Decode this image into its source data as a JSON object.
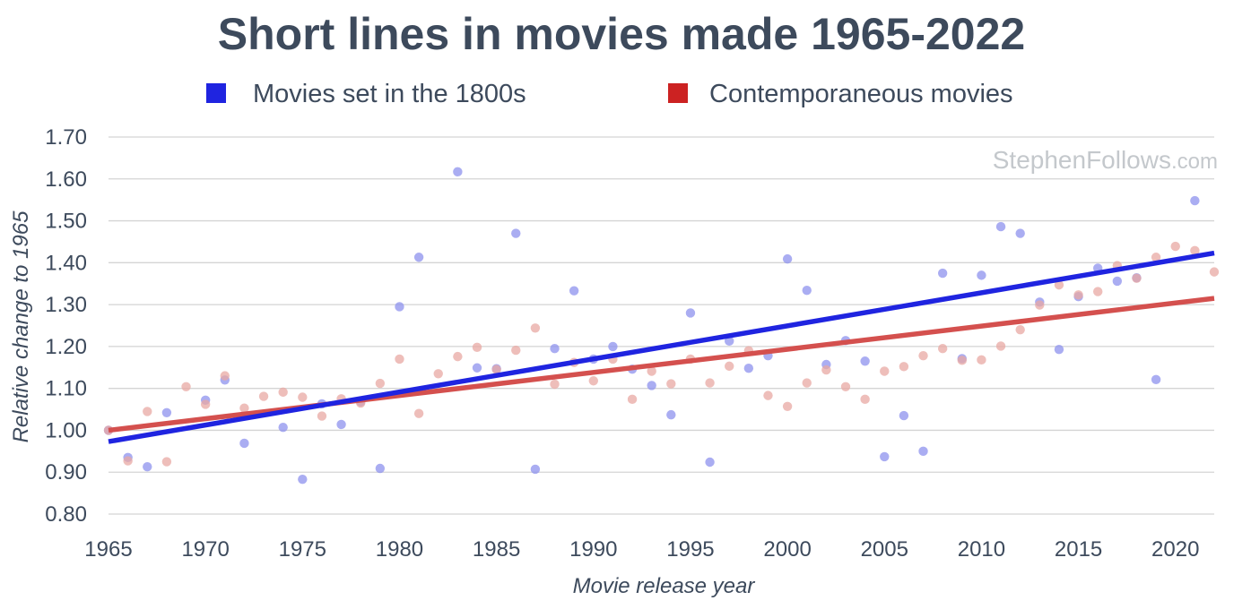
{
  "chart_data": {
    "type": "scatter",
    "title": "Short lines in movies made 1965-2022",
    "xlabel": "Movie release year",
    "ylabel": "Relative change to 1965",
    "xlim": [
      1965,
      2022
    ],
    "ylim": [
      0.8,
      1.7
    ],
    "x_ticks": [
      "1965",
      "1970",
      "1975",
      "1980",
      "1985",
      "1990",
      "1995",
      "2000",
      "2005",
      "2010",
      "2015",
      "2020"
    ],
    "y_ticks": [
      "0.80",
      "0.90",
      "1.00",
      "1.10",
      "1.20",
      "1.30",
      "1.40",
      "1.50",
      "1.60",
      "1.70"
    ],
    "grid": "horizontal",
    "legend_position": "top",
    "watermark": {
      "main": "StephenFollows",
      "suffix": ".com"
    },
    "series": [
      {
        "name": "Movies set in the 1800s",
        "color": "#1f24e0",
        "point_color": "#8d92ee",
        "trend": [
          [
            1965,
            0.973
          ],
          [
            2022,
            1.423
          ]
        ],
        "points": [
          [
            1965,
            1.0
          ],
          [
            1966,
            0.935
          ],
          [
            1967,
            0.913
          ],
          [
            1968,
            1.042
          ],
          [
            1970,
            1.072
          ],
          [
            1971,
            1.12
          ],
          [
            1972,
            0.969
          ],
          [
            1974,
            1.007
          ],
          [
            1975,
            0.883
          ],
          [
            1976,
            1.063
          ],
          [
            1977,
            1.014
          ],
          [
            1978,
            1.068
          ],
          [
            1979,
            0.909
          ],
          [
            1980,
            1.295
          ],
          [
            1981,
            1.413
          ],
          [
            1983,
            1.617
          ],
          [
            1984,
            1.149
          ],
          [
            1985,
            1.147
          ],
          [
            1986,
            1.47
          ],
          [
            1987,
            0.907
          ],
          [
            1988,
            1.195
          ],
          [
            1989,
            1.333
          ],
          [
            1990,
            1.17
          ],
          [
            1991,
            1.2
          ],
          [
            1992,
            1.146
          ],
          [
            1993,
            1.107
          ],
          [
            1994,
            1.037
          ],
          [
            1995,
            1.28
          ],
          [
            1996,
            0.924
          ],
          [
            1997,
            1.213
          ],
          [
            1998,
            1.148
          ],
          [
            1999,
            1.178
          ],
          [
            2000,
            1.409
          ],
          [
            2001,
            1.334
          ],
          [
            2002,
            1.157
          ],
          [
            2003,
            1.214
          ],
          [
            2004,
            1.165
          ],
          [
            2005,
            0.937
          ],
          [
            2006,
            1.035
          ],
          [
            2007,
            0.95
          ],
          [
            2008,
            1.375
          ],
          [
            2009,
            1.171
          ],
          [
            2010,
            1.37
          ],
          [
            2011,
            1.486
          ],
          [
            2012,
            1.47
          ],
          [
            2013,
            1.306
          ],
          [
            2014,
            1.193
          ],
          [
            2015,
            1.319
          ],
          [
            2016,
            1.387
          ],
          [
            2017,
            1.356
          ],
          [
            2018,
            1.364
          ],
          [
            2019,
            1.121
          ],
          [
            2021,
            1.548
          ]
        ]
      },
      {
        "name": "Contemporaneous movies",
        "color": "#cc2222",
        "trend_color": "#d4504e",
        "point_color": "#e8a8a3",
        "trend": [
          [
            1965,
            1.0
          ],
          [
            2022,
            1.315
          ]
        ],
        "points": [
          [
            1965,
            1.0
          ],
          [
            1966,
            0.927
          ],
          [
            1967,
            1.045
          ],
          [
            1968,
            0.925
          ],
          [
            1969,
            1.104
          ],
          [
            1970,
            1.062
          ],
          [
            1971,
            1.13
          ],
          [
            1972,
            1.053
          ],
          [
            1973,
            1.081
          ],
          [
            1974,
            1.091
          ],
          [
            1975,
            1.079
          ],
          [
            1976,
            1.034
          ],
          [
            1977,
            1.075
          ],
          [
            1978,
            1.065
          ],
          [
            1979,
            1.112
          ],
          [
            1980,
            1.17
          ],
          [
            1981,
            1.04
          ],
          [
            1982,
            1.135
          ],
          [
            1983,
            1.176
          ],
          [
            1984,
            1.198
          ],
          [
            1985,
            1.145
          ],
          [
            1986,
            1.191
          ],
          [
            1987,
            1.244
          ],
          [
            1988,
            1.11
          ],
          [
            1989,
            1.162
          ],
          [
            1990,
            1.118
          ],
          [
            1991,
            1.17
          ],
          [
            1992,
            1.074
          ],
          [
            1993,
            1.141
          ],
          [
            1994,
            1.111
          ],
          [
            1995,
            1.17
          ],
          [
            1996,
            1.113
          ],
          [
            1997,
            1.153
          ],
          [
            1998,
            1.19
          ],
          [
            1999,
            1.083
          ],
          [
            2000,
            1.057
          ],
          [
            2001,
            1.113
          ],
          [
            2002,
            1.144
          ],
          [
            2003,
            1.104
          ],
          [
            2004,
            1.074
          ],
          [
            2005,
            1.141
          ],
          [
            2006,
            1.152
          ],
          [
            2007,
            1.178
          ],
          [
            2008,
            1.195
          ],
          [
            2009,
            1.167
          ],
          [
            2010,
            1.168
          ],
          [
            2011,
            1.201
          ],
          [
            2012,
            1.24
          ],
          [
            2013,
            1.299
          ],
          [
            2014,
            1.347
          ],
          [
            2015,
            1.323
          ],
          [
            2016,
            1.331
          ],
          [
            2017,
            1.393
          ],
          [
            2018,
            1.363
          ],
          [
            2019,
            1.413
          ],
          [
            2020,
            1.439
          ],
          [
            2021,
            1.429
          ],
          [
            2022,
            1.378
          ]
        ]
      }
    ]
  }
}
